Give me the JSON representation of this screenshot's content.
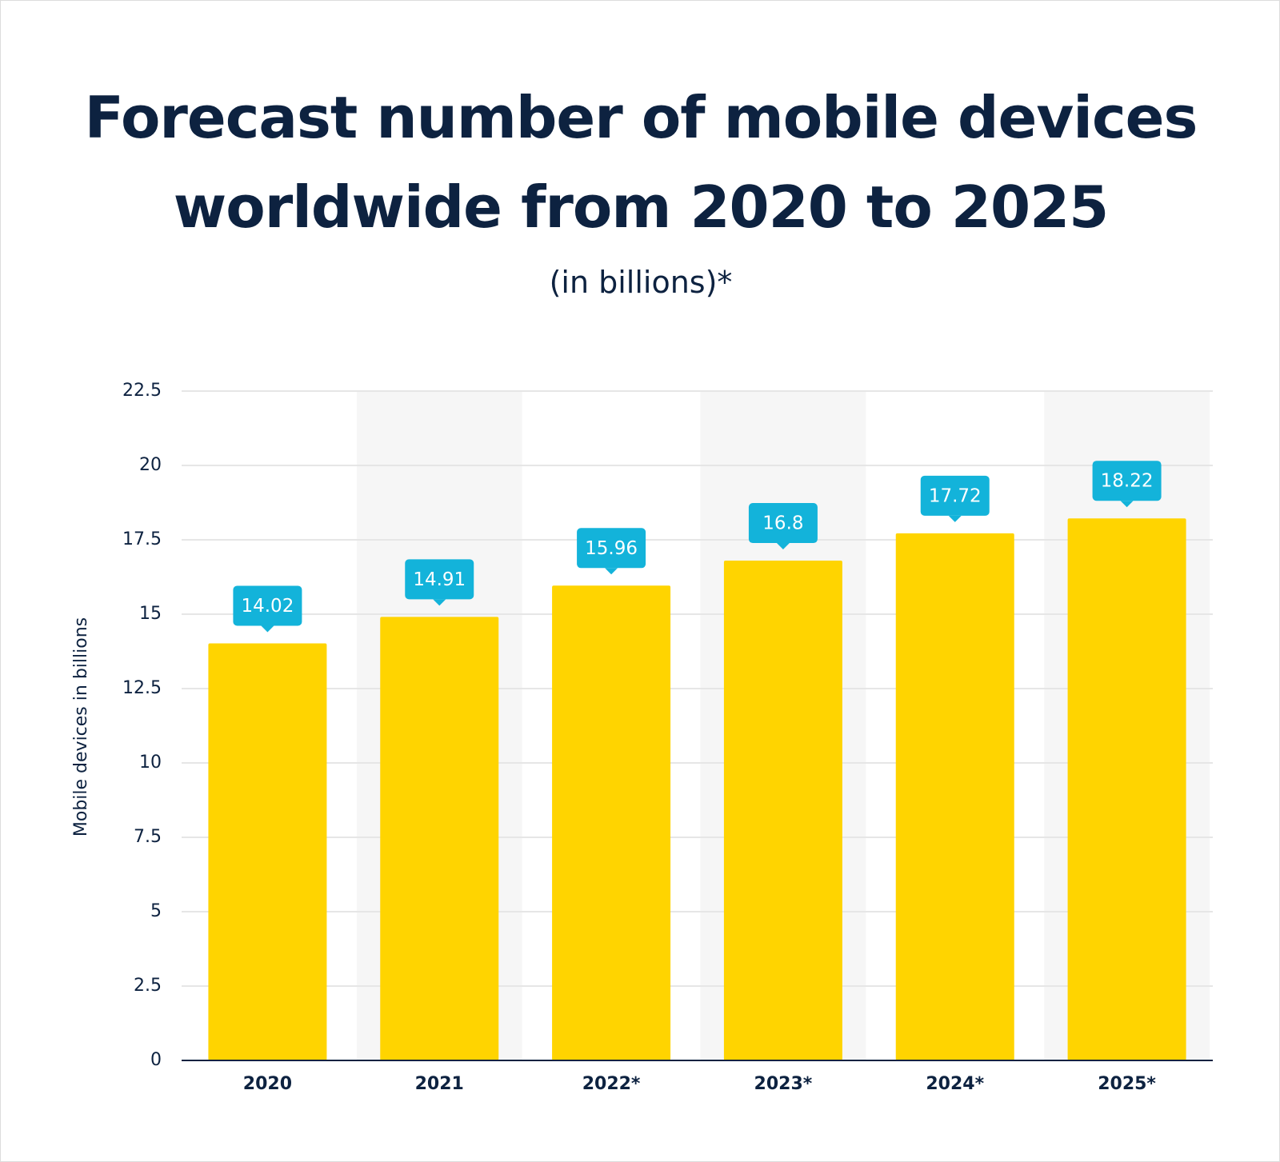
{
  "chart_data": {
    "type": "bar",
    "title": "Forecast number of mobile devices worldwide from 2020 to 2025",
    "subtitle": "(in billions)*",
    "y_label": "Mobile devices in billions",
    "categories": [
      "2020",
      "2021",
      "2022*",
      "2023*",
      "2024*",
      "2025*"
    ],
    "values": [
      14.02,
      14.91,
      15.96,
      16.8,
      17.72,
      18.22
    ],
    "color": "#ffd400",
    "label_color": "#13b3da",
    "ylim": [
      0,
      22.5
    ],
    "yticks": [
      0,
      2.5,
      5,
      7.5,
      10,
      12.5,
      15,
      17.5,
      20,
      22.5
    ],
    "grid": true
  }
}
